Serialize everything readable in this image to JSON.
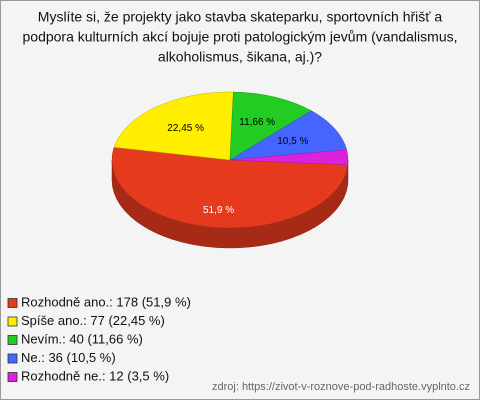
{
  "chart_data": {
    "type": "pie3d",
    "title": [
      "Myslíte si, že projekty jako stavba skateparku, sportovních hřišť a",
      "podpora kulturních akcí bojuje proti patologickým jevům (vandalismus,",
      "alkoholismus, šikana, aj.)?"
    ],
    "categories": [
      "Rozhodně ano.: 178 (51,9 %)",
      "Spíše ano.: 77 (22,45 %)",
      "Nevím.: 40 (11,66 %)",
      "Ne.: 36 (10,5 %)",
      "Rozhodně ne.: 12 (3,5 %)"
    ],
    "values": [
      51.9,
      22.45,
      11.66,
      10.5,
      3.5
    ],
    "value_labels": [
      "51,9 %",
      "22,45 %",
      "11,66 %",
      "10,5 %",
      null
    ],
    "colors": [
      "#e63a1e",
      "#ffee00",
      "#22cc22",
      "#4466ff",
      "#dd22dd"
    ],
    "source": "zdroj: https://zivot-v-roznove-pod-radhoste.vyplnto.cz"
  }
}
